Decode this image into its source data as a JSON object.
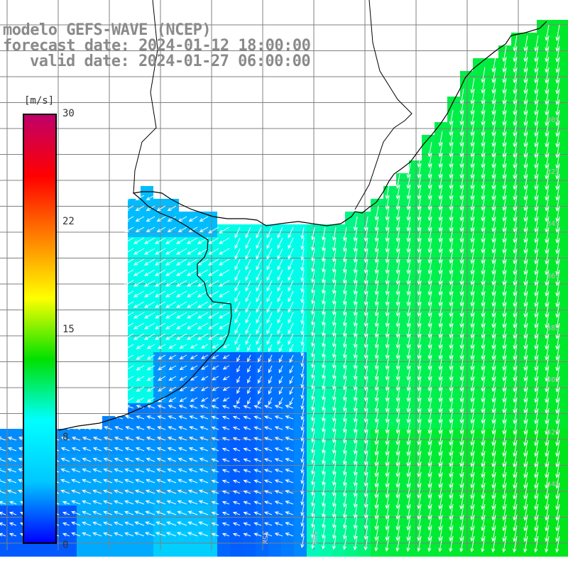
{
  "title": {
    "line1": "modelo GEFS-WAVE (NCEP)",
    "line2": "forecast date: 2024-01-12 18:00:00",
    "line3": "valid date: 2024-01-27 06:00:00"
  },
  "colorbar": {
    "unit": "[m/s]",
    "ticks": [
      "30",
      "22",
      "15",
      "8",
      "0"
    ],
    "range": [
      0,
      30
    ],
    "stops": [
      "#0000ff",
      "#00c8ff",
      "#00ffff",
      "#00e000",
      "#ffff00",
      "#ff8000",
      "#ff0000",
      "#c0006a"
    ]
  },
  "grid_labels": [
    "30S",
    "32S",
    "34S",
    "36S",
    "38S",
    "40S",
    "42S",
    "44S",
    "55W",
    "50W"
  ],
  "colors": {
    "land": "#ffffff",
    "coast": "#000000",
    "grid": "#808080",
    "title": "#8a8a8a"
  }
}
